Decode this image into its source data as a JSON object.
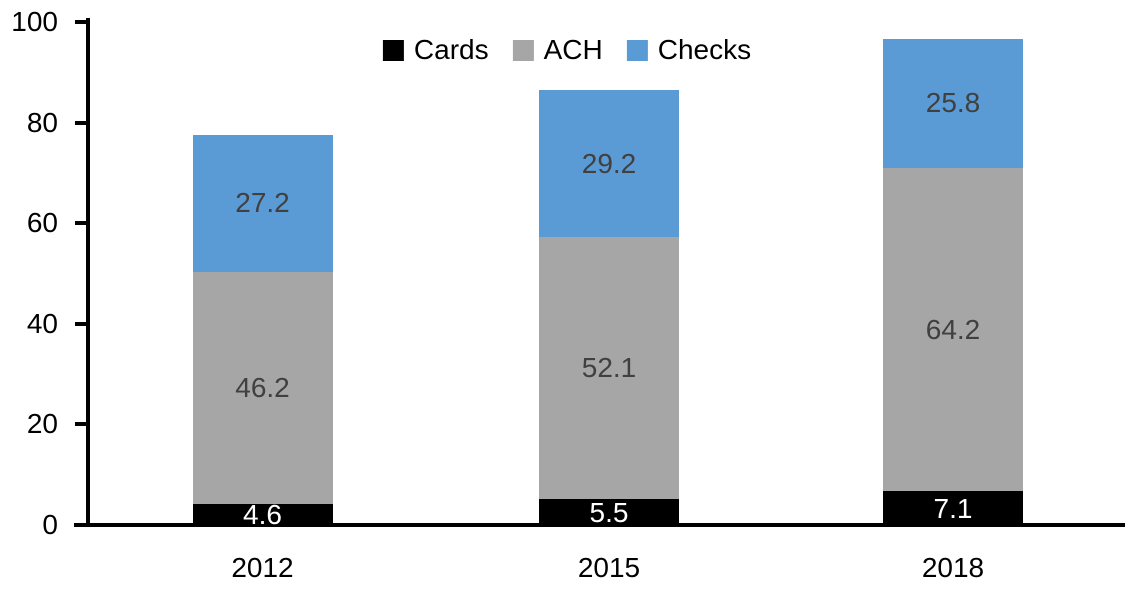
{
  "chart_data": {
    "type": "bar",
    "stacked": true,
    "title": "",
    "xlabel": "",
    "ylabel": "",
    "categories": [
      "2012",
      "2015",
      "2018"
    ],
    "series": [
      {
        "name": "Cards",
        "color": "#000000",
        "label_color": "#ffffff",
        "values": [
          4.6,
          5.5,
          7.1
        ]
      },
      {
        "name": "ACH",
        "color": "#a6a6a6",
        "label_color": "#404040",
        "values": [
          46.2,
          52.1,
          64.2
        ]
      },
      {
        "name": "Checks",
        "color": "#5b9bd5",
        "label_color": "#404040",
        "values": [
          27.2,
          29.2,
          25.8
        ]
      }
    ],
    "totals": [
      78.0,
      86.8,
      97.1
    ],
    "ylim": [
      0,
      100
    ],
    "yticks": [
      0,
      20,
      40,
      60,
      80,
      100
    ],
    "grid": false,
    "legend_position": "top-center",
    "axis_color": "#000000",
    "background_color": "#ffffff"
  }
}
